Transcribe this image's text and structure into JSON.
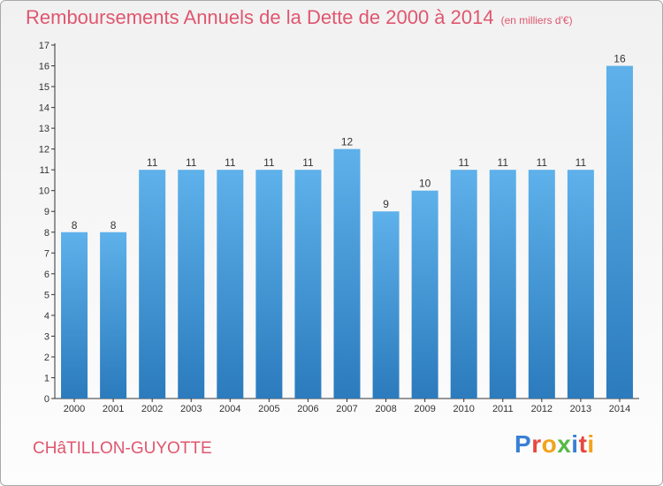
{
  "header": {
    "title": "Remboursements Annuels de la Dette de 2000 à 2014",
    "unit_note": "(en milliers d'€)"
  },
  "footer": {
    "town": "CHâTILLON-GUYOTTE",
    "logo_letters": [
      {
        "char": "P",
        "color": "#3a7fd5"
      },
      {
        "char": "r",
        "color": "#e8473f"
      },
      {
        "char": "o",
        "color": "#f2a31b"
      },
      {
        "char": "x",
        "color": "#57b947"
      },
      {
        "char": "i",
        "color": "#3a7fd5"
      },
      {
        "char": "t",
        "color": "#e8473f"
      },
      {
        "char": "i",
        "color": "#f2a31b"
      }
    ]
  },
  "chart_data": {
    "type": "bar",
    "title": "Remboursements Annuels de la Dette de 2000 à 2014",
    "subtitle": "(en milliers d'€)",
    "xlabel": "",
    "ylabel": "",
    "categories": [
      "2000",
      "2001",
      "2002",
      "2003",
      "2004",
      "2005",
      "2006",
      "2007",
      "2008",
      "2009",
      "2010",
      "2011",
      "2012",
      "2013",
      "2014"
    ],
    "values": [
      8,
      8,
      11,
      11,
      11,
      11,
      11,
      12,
      9,
      10,
      11,
      11,
      11,
      11,
      16
    ],
    "value_labels": [
      "8",
      "8",
      "11",
      "11",
      "11",
      "11",
      "11",
      "12",
      "9",
      "10",
      "11",
      "11",
      "11",
      "11",
      "16"
    ],
    "y_ticks": [
      0,
      1,
      2,
      3,
      4,
      5,
      6,
      7,
      8,
      9,
      10,
      11,
      12,
      13,
      14,
      15,
      16,
      17
    ],
    "ylim": [
      0,
      17
    ],
    "grid": false,
    "legend": "none",
    "colors": {
      "bar_top": "#5eb1ea",
      "bar_bottom": "#2b7bbd",
      "title": "#e0566f",
      "axis": "#333333",
      "label": "#333333"
    }
  }
}
